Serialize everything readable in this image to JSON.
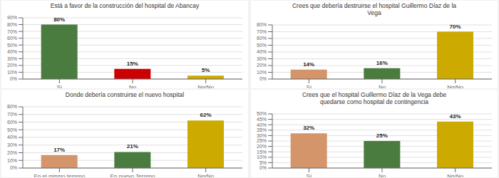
{
  "chart_data": [
    {
      "type": "bar",
      "title": "Está a favor de la construcción del hospital de Abancay",
      "categories": [
        "Sí",
        "No",
        "Ng/No"
      ],
      "values": [
        80,
        15,
        5
      ],
      "value_labels": [
        "80%",
        "15%",
        "5%"
      ],
      "colors": [
        "#4a7c3f",
        "#cc0000",
        "#ccaa00"
      ],
      "ylim": [
        0,
        90
      ],
      "yticks": [
        {
          "value": 0,
          "label": "0%"
        },
        {
          "value": 10,
          "label": "10%"
        },
        {
          "value": 20,
          "label": "20%"
        },
        {
          "value": 30,
          "label": "30%"
        },
        {
          "value": 40,
          "label": "40%"
        },
        {
          "value": 50,
          "label": "50%"
        },
        {
          "value": 60,
          "label": "60%"
        },
        {
          "value": 70,
          "label": "70%"
        },
        {
          "value": 80,
          "label": "80%"
        },
        {
          "value": 90,
          "label": "90%"
        }
      ],
      "grid": true,
      "data_labels": true
    },
    {
      "type": "bar",
      "title": "Crees que debería destruirse el hospital Guillermo Díaz de la\nVega",
      "categories": [
        "Sí",
        "No",
        "Ng/No"
      ],
      "values": [
        14,
        16,
        70
      ],
      "value_labels": [
        "14%",
        "16%",
        "70%"
      ],
      "colors": [
        "#d4956a",
        "#4a7c3f",
        "#ccaa00"
      ],
      "ylim": [
        0,
        80
      ],
      "yticks": [
        {
          "value": 0,
          "label": "0%"
        },
        {
          "value": 10,
          "label": "10%"
        },
        {
          "value": 20,
          "label": "20%"
        },
        {
          "value": 30,
          "label": "30%"
        },
        {
          "value": 40,
          "label": "40%"
        },
        {
          "value": 50,
          "label": "50%"
        },
        {
          "value": 60,
          "label": "60%"
        },
        {
          "value": 70,
          "label": "70%"
        },
        {
          "value": 80,
          "label": "80%"
        }
      ],
      "grid": true,
      "data_labels": true
    },
    {
      "type": "bar",
      "title": "Donde debería construirse el nuevo hospital",
      "categories": [
        "En el mismo terreno",
        "En nuevo Terreno",
        "Ng/No"
      ],
      "values": [
        17,
        21,
        62
      ],
      "value_labels": [
        "17%",
        "21%",
        "62%"
      ],
      "colors": [
        "#d4956a",
        "#4a7c3f",
        "#ccaa00"
      ],
      "ylim": [
        0,
        80
      ],
      "yticks": [
        {
          "value": 0,
          "label": "0%"
        },
        {
          "value": 10,
          "label": "10%"
        },
        {
          "value": 20,
          "label": "20%"
        },
        {
          "value": 30,
          "label": "30%"
        },
        {
          "value": 40,
          "label": "40%"
        },
        {
          "value": 50,
          "label": "50%"
        },
        {
          "value": 60,
          "label": "60%"
        },
        {
          "value": 70,
          "label": "70%"
        },
        {
          "value": 80,
          "label": "80%"
        }
      ],
      "grid": true,
      "data_labels": true
    },
    {
      "type": "bar",
      "title": "Crees que el hospital Guillermo Díaz de la Vega debe\nquedarse como hospital de contingencia",
      "categories": [
        "Sí",
        "No",
        "Ng/No"
      ],
      "values": [
        32,
        25,
        43
      ],
      "value_labels": [
        "32%",
        "25%",
        "43%"
      ],
      "colors": [
        "#d4956a",
        "#4a7c3f",
        "#ccaa00"
      ],
      "ylim": [
        0,
        50
      ],
      "yticks": [
        {
          "value": 0,
          "label": "0%"
        },
        {
          "value": 5,
          "label": "5%"
        },
        {
          "value": 10,
          "label": "10%"
        },
        {
          "value": 15,
          "label": "15%"
        },
        {
          "value": 20,
          "label": "20%"
        },
        {
          "value": 25,
          "label": "25%"
        },
        {
          "value": 30,
          "label": "30%"
        },
        {
          "value": 35,
          "label": "35%"
        },
        {
          "value": 40,
          "label": "40%"
        },
        {
          "value": 45,
          "label": "45%"
        },
        {
          "value": 50,
          "label": "50%"
        }
      ],
      "grid": true,
      "data_labels": true
    }
  ]
}
